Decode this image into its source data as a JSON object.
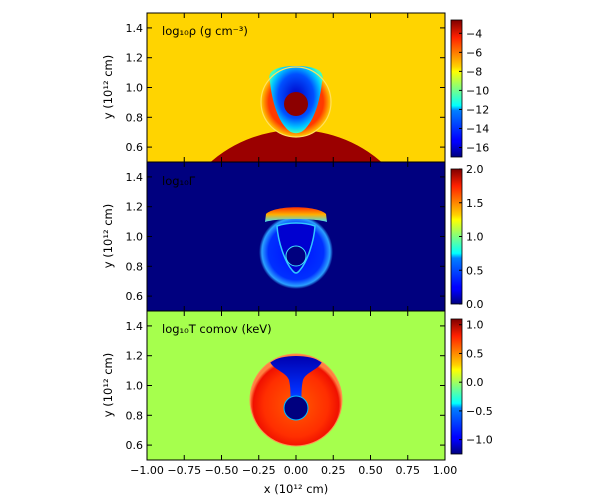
{
  "chart_data": [
    {
      "type": "heatmap",
      "panel": "top",
      "annotation": "log₁₀ρ (g cm⁻³)",
      "ylabel": "y (10¹² cm)",
      "xlim": [
        -1.0,
        1.0
      ],
      "ylim": [
        0.5,
        1.5
      ],
      "yticks": [
        "0.6",
        "0.8",
        "1.0",
        "1.2",
        "1.4"
      ],
      "colorbar": {
        "colormap": "jet",
        "range": [
          -17,
          -2.6
        ],
        "ticks": [
          "−4",
          "−6",
          "−8",
          "−10",
          "−12",
          "−14",
          "−16"
        ]
      },
      "background_color": "#ffd400",
      "features": {
        "star": {
          "center": [
            0.0,
            0.0
          ],
          "radius": 0.87,
          "color": "#9b0000"
        },
        "bubble": {
          "center": [
            0.0,
            1.0
          ],
          "radius": 0.23
        }
      }
    },
    {
      "type": "heatmap",
      "panel": "middle",
      "annotation": "log₁₀Γ",
      "ylabel": "y (10¹² cm)",
      "xlim": [
        -1.0,
        1.0
      ],
      "ylim": [
        0.5,
        1.5
      ],
      "yticks": [
        "0.6",
        "0.8",
        "1.0",
        "1.2",
        "1.4"
      ],
      "colorbar": {
        "colormap": "jet",
        "range": [
          0.0,
          2.0
        ],
        "ticks": [
          "2.0",
          "1.5",
          "1.0",
          "0.5",
          "0.0"
        ]
      },
      "background_color": "#00007f",
      "features": {
        "bubble": {
          "center": [
            0.0,
            1.0
          ],
          "radius": 0.23
        }
      }
    },
    {
      "type": "heatmap",
      "panel": "bottom",
      "annotation": "log₁₀T comov (keV)",
      "ylabel": "y (10¹² cm)",
      "xlabel": "x (10¹² cm)",
      "xlim": [
        -1.0,
        1.0
      ],
      "ylim": [
        0.5,
        1.5
      ],
      "yticks": [
        "0.6",
        "0.8",
        "1.0",
        "1.2",
        "1.4"
      ],
      "xticks": [
        "−1.00",
        "−0.75",
        "−0.50",
        "−0.25",
        "0.00",
        "0.25",
        "0.50",
        "0.75",
        "1.00"
      ],
      "colorbar": {
        "colormap": "jet",
        "range": [
          -1.25,
          1.1
        ],
        "ticks": [
          "1.0",
          "0.5",
          "0.0",
          "−0.5",
          "−1.0"
        ]
      },
      "background_color": "#a6ff4d",
      "features": {
        "bubble": {
          "center": [
            0.0,
            1.0
          ],
          "radius": 0.23
        }
      }
    }
  ]
}
